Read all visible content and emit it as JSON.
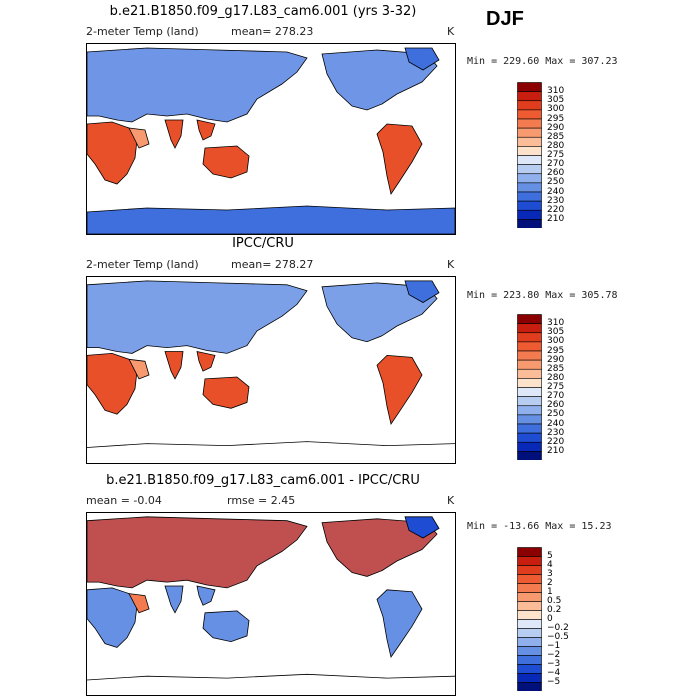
{
  "season": "DJF",
  "panels": [
    {
      "title": "b.e21.B1850.f09_g17.L83_cam6.001 (yrs 3-32)",
      "left_label": "2-meter Temp (land)",
      "center_label": "mean=  278.23",
      "units": "K",
      "minmax": "Min = 229.60 Max = 307.23"
    },
    {
      "title": "IPCC/CRU",
      "left_label": "2-meter Temp (land)",
      "center_label": "mean=  278.27",
      "units": "K",
      "minmax": "Min = 223.80 Max = 305.78"
    },
    {
      "title": "b.e21.B1850.f09_g17.L83_cam6.001 - IPCC/CRU",
      "left_label": "mean =   -0.04",
      "center_label": "rmse =    2.45",
      "units": "K",
      "minmax": "Min = -13.66 Max =  15.23"
    }
  ],
  "chart_data": [
    {
      "type": "heatmap",
      "title": "b.e21.B1850.f09_g17.L83_cam6.001 (yrs 3-32)",
      "variable": "2-meter Temp (land)",
      "mean": 278.23,
      "min": 229.6,
      "max": 307.23,
      "colorbar_levels": [
        "310",
        "305",
        "300",
        "295",
        "290",
        "285",
        "280",
        "275",
        "270",
        "260",
        "250",
        "240",
        "230",
        "220",
        "210"
      ],
      "colors": [
        "#8b0000",
        "#c81e10",
        "#e03c1e",
        "#ee5a32",
        "#f47a50",
        "#f89a70",
        "#fbbc98",
        "#fde2cc",
        "#dfe8f8",
        "#b8cdf2",
        "#8fb0ec",
        "#6690e4",
        "#3e6fdc",
        "#1e4cd2",
        "#0828b8",
        "#00107a"
      ]
    },
    {
      "type": "heatmap",
      "title": "IPCC/CRU",
      "variable": "2-meter Temp (land)",
      "mean": 278.27,
      "min": 223.8,
      "max": 305.78,
      "colorbar_levels": [
        "310",
        "305",
        "300",
        "295",
        "290",
        "285",
        "280",
        "275",
        "270",
        "260",
        "250",
        "240",
        "230",
        "220",
        "210"
      ],
      "colors": [
        "#8b0000",
        "#c81e10",
        "#e03c1e",
        "#ee5a32",
        "#f47a50",
        "#f89a70",
        "#fbbc98",
        "#fde2cc",
        "#dfe8f8",
        "#b8cdf2",
        "#8fb0ec",
        "#6690e4",
        "#3e6fdc",
        "#1e4cd2",
        "#0828b8",
        "#00107a"
      ]
    },
    {
      "type": "heatmap",
      "title": "b.e21.B1850.f09_g17.L83_cam6.001 - IPCC/CRU",
      "mean": -0.04,
      "rmse": 2.45,
      "min": -13.66,
      "max": 15.23,
      "colorbar_levels": [
        "5",
        "4",
        "3",
        "2",
        "1",
        "0.5",
        "0.2",
        "0",
        "−0.2",
        "−0.5",
        "−1",
        "−2",
        "−3",
        "−4",
        "−5"
      ],
      "colors": [
        "#8b0000",
        "#c81e10",
        "#e03c1e",
        "#ee5a32",
        "#f47a50",
        "#f89a70",
        "#fbbc98",
        "#fde2cc",
        "#dfe8f8",
        "#b8cdf2",
        "#8fb0ec",
        "#6690e4",
        "#3e6fdc",
        "#1e4cd2",
        "#0828b8",
        "#00107a"
      ]
    }
  ]
}
